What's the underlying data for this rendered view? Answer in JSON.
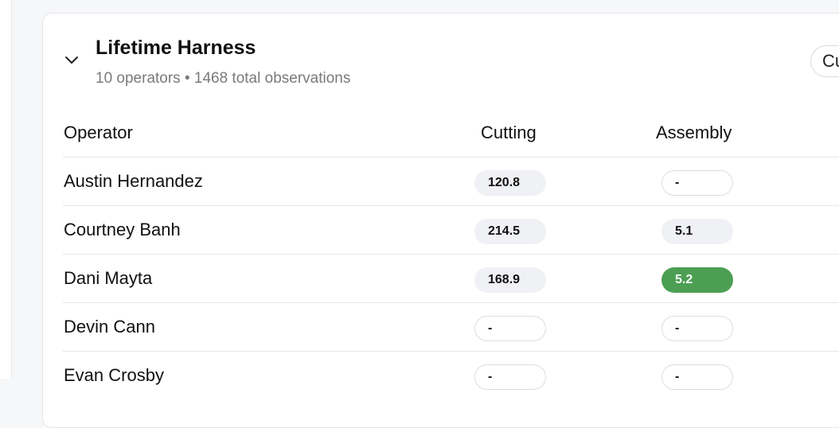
{
  "section": {
    "title": "Lifetime Harness",
    "subtitle": "10 operators • 1468 total observations",
    "header_button_label": "Cu",
    "chevron_icon": "chevron-down-icon"
  },
  "table": {
    "columns": {
      "operator": "Operator",
      "cutting": "Cutting",
      "assembly": "Assembly"
    },
    "rows": [
      {
        "name": "Austin Hernandez",
        "cutting": "120.8",
        "cutting_state": "filled",
        "assembly": "-",
        "assembly_state": "empty"
      },
      {
        "name": "Courtney Banh",
        "cutting": "214.5",
        "cutting_state": "filled",
        "assembly": "5.1",
        "assembly_state": "filled"
      },
      {
        "name": "Dani Mayta",
        "cutting": "168.9",
        "cutting_state": "filled",
        "assembly": "5.2",
        "assembly_state": "good"
      },
      {
        "name": "Devin Cann",
        "cutting": "-",
        "cutting_state": "empty",
        "assembly": "-",
        "assembly_state": "empty"
      },
      {
        "name": "Evan Crosby",
        "cutting": "-",
        "cutting_state": "empty",
        "assembly": "-",
        "assembly_state": "empty"
      }
    ]
  },
  "colors": {
    "good_highlight": "#4c9f52",
    "pill_fill": "#f0f1f4",
    "subtitle_text": "#7a7a7a"
  }
}
